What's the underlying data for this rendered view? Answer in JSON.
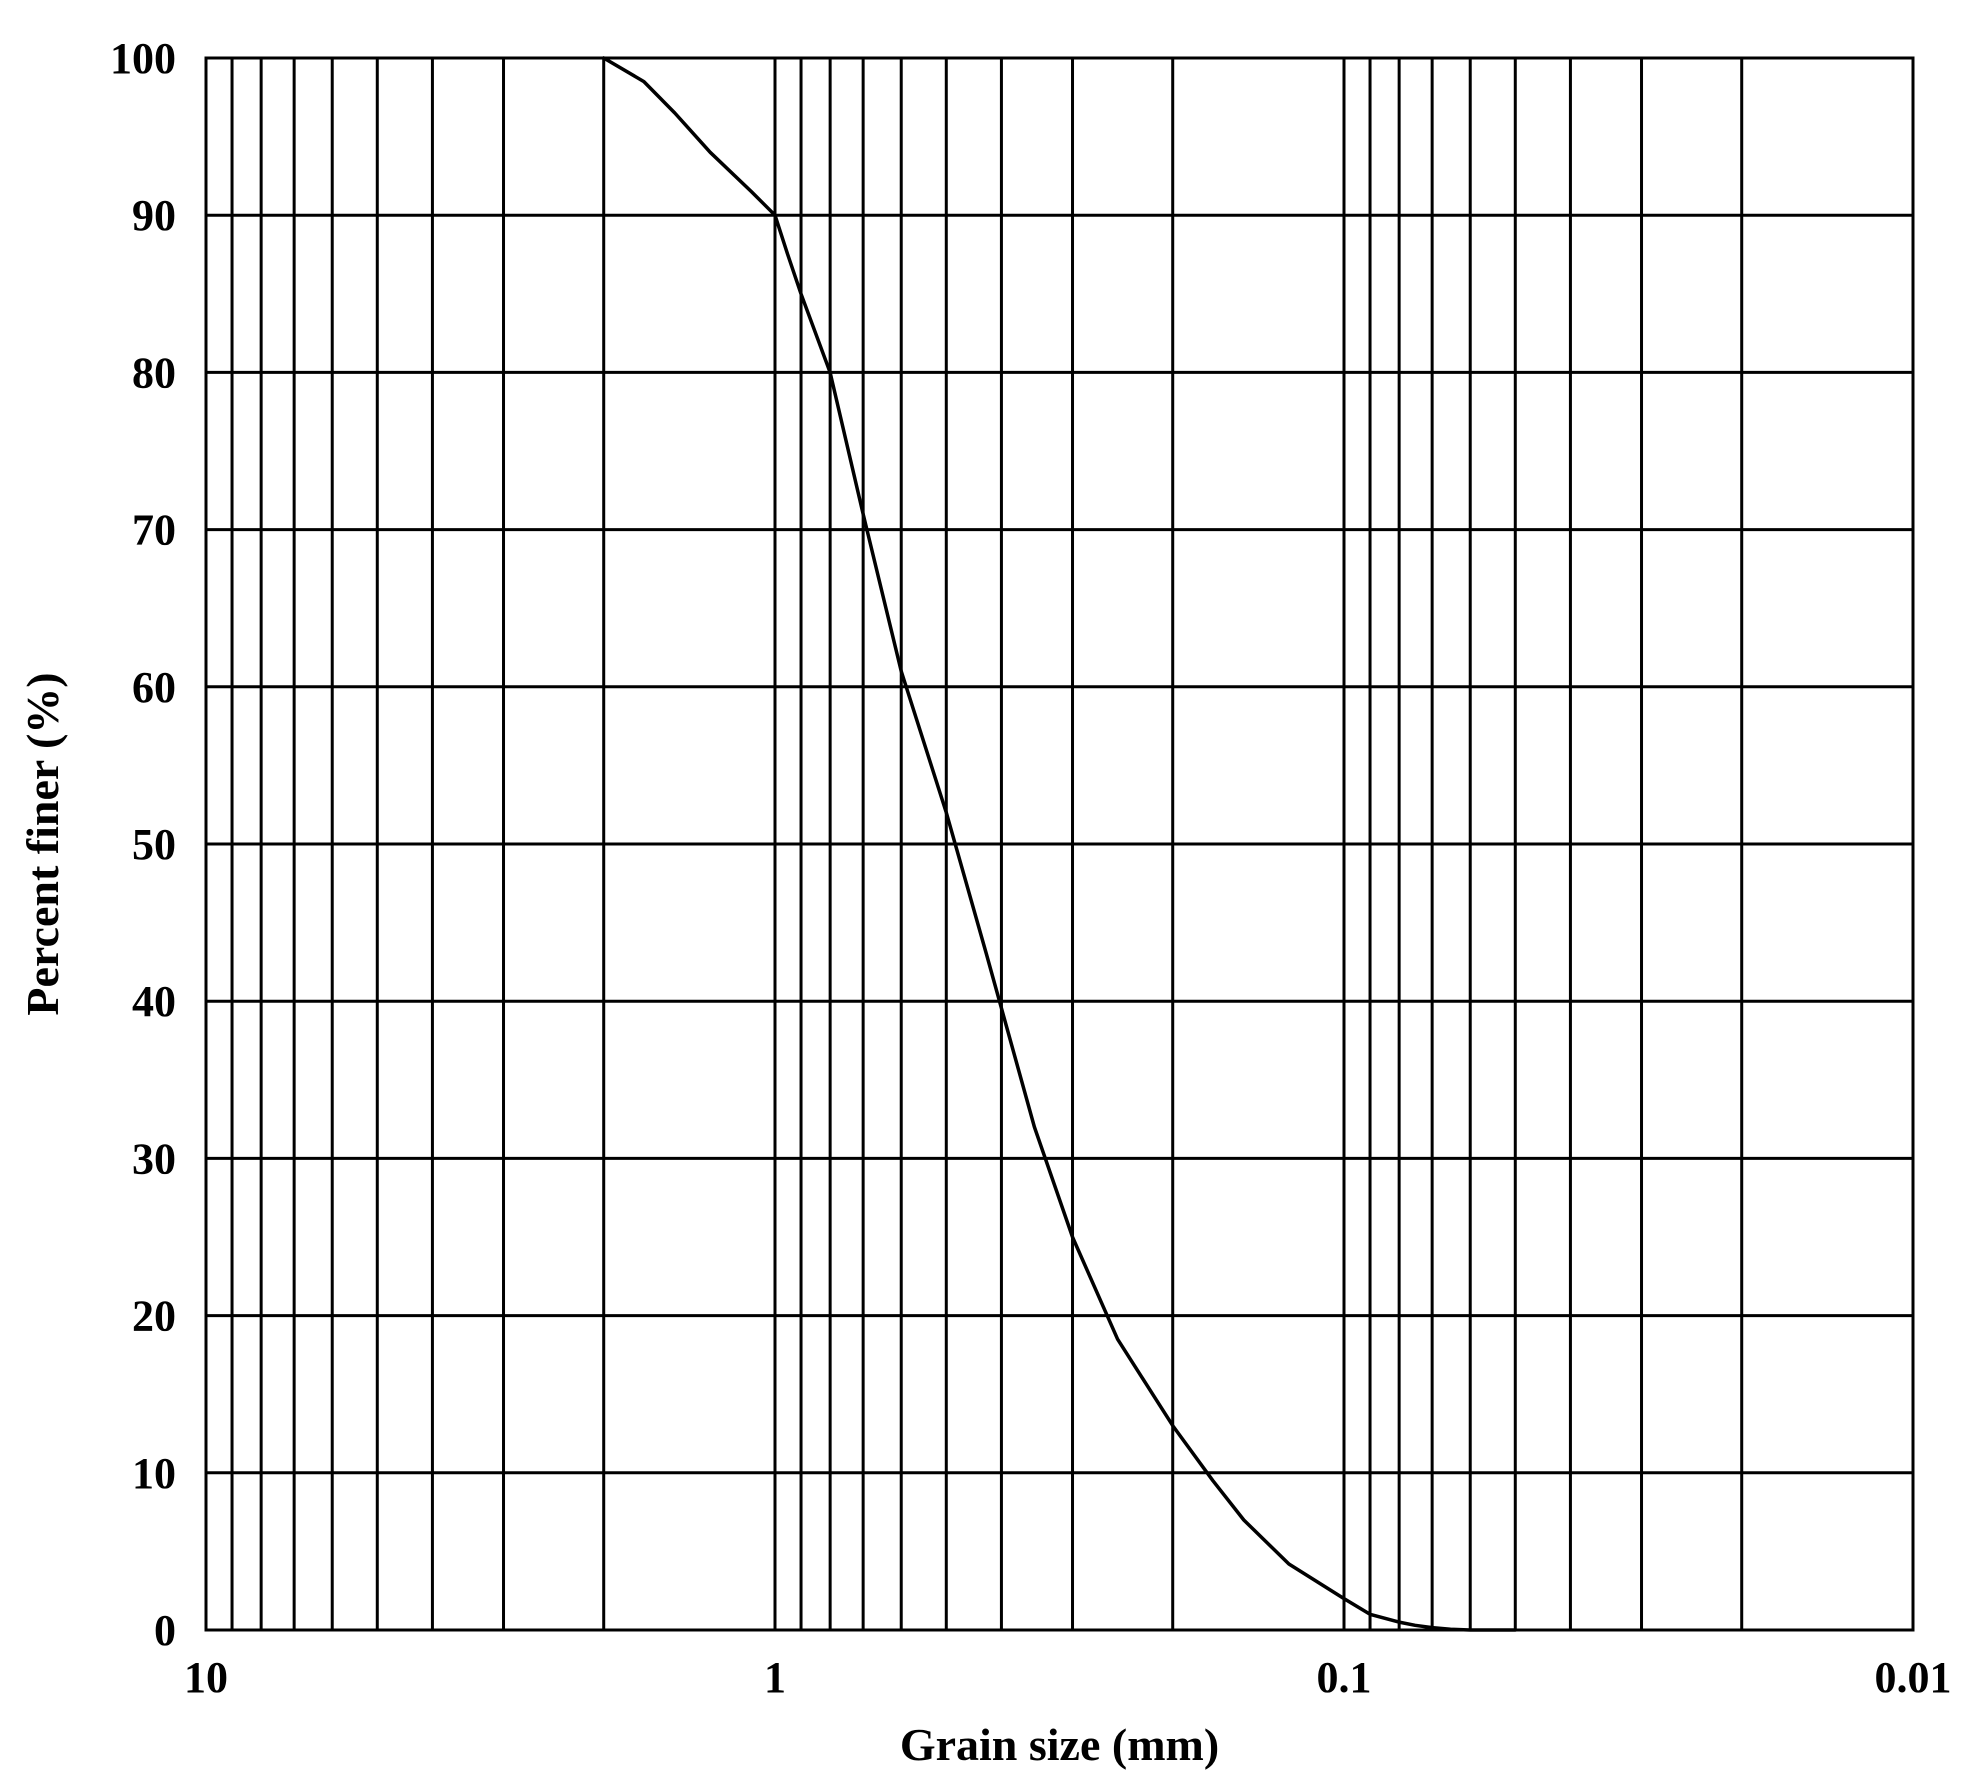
{
  "chart_data": {
    "type": "line",
    "title": "",
    "xlabel": "Grain size (mm)",
    "ylabel": "Percent finer (%)",
    "x_scale": "log",
    "x_reversed": true,
    "xlim": [
      10,
      0.01
    ],
    "ylim": [
      0,
      100
    ],
    "grid": true,
    "x_ticks": [
      10,
      1,
      0.1,
      0.01
    ],
    "x_tick_labels": [
      "10",
      "1",
      "0.1",
      "0.01"
    ],
    "y_ticks": [
      0,
      10,
      20,
      30,
      40,
      50,
      60,
      70,
      80,
      90,
      100
    ],
    "y_tick_labels": [
      "0",
      "10",
      "20",
      "30",
      "40",
      "50",
      "60",
      "70",
      "80",
      "90",
      "100"
    ],
    "line_color": "#000000",
    "grid_color": "#000000",
    "series": [
      {
        "x": [
          2,
          1.7,
          1.5,
          1.3,
          1.1,
          1.0,
          0.95,
          0.9,
          0.8,
          0.7,
          0.6,
          0.5,
          0.425,
          0.35,
          0.3,
          0.25,
          0.2,
          0.17,
          0.15,
          0.125,
          0.1,
          0.09,
          0.08,
          0.075,
          0.07,
          0.065,
          0.06,
          0.055,
          0.05
        ],
        "y": [
          100,
          98.5,
          96.5,
          94,
          91.5,
          90,
          87.5,
          85,
          80,
          71,
          61,
          52,
          43,
          32,
          25,
          18.5,
          13,
          9.5,
          7,
          4.2,
          2.0,
          1.0,
          0.5,
          0.3,
          0.15,
          0.05,
          0,
          0,
          0
        ]
      }
    ]
  }
}
